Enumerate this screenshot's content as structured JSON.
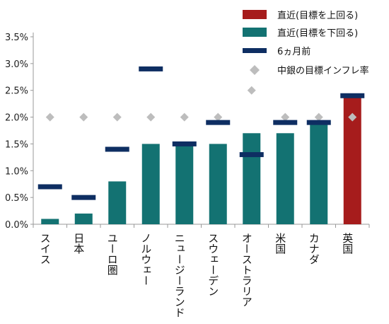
{
  "colors": {
    "above": "#A61C1C",
    "below": "#137272",
    "six_months_ago": "#0E2E62",
    "target": "#BDBDBD",
    "axis": "#999999"
  },
  "legend": [
    {
      "label": "直近(目標を上回る)",
      "marker": "bar-above"
    },
    {
      "label": "直近(目標を下回る)",
      "marker": "bar-below"
    },
    {
      "label": "6ヵ月前",
      "marker": "dash"
    },
    {
      "label": "中銀の目標インフレ率",
      "marker": "diamond"
    }
  ],
  "chart_data": {
    "type": "bar",
    "categories": [
      "スイス",
      "日本",
      "ユーロ圏",
      "ノルウェー",
      "ニュージーランド",
      "スウェーデン",
      "オーストラリア",
      "米国",
      "カナダ",
      "英国"
    ],
    "series": [
      {
        "name": "直近(目標を下回る)",
        "values": [
          0.1,
          0.2,
          0.8,
          1.5,
          1.5,
          1.5,
          1.7,
          1.7,
          1.9,
          null
        ]
      },
      {
        "name": "直近(目標を上回る)",
        "values": [
          null,
          null,
          null,
          null,
          null,
          null,
          null,
          null,
          null,
          2.4
        ]
      },
      {
        "name": "6ヵ月前",
        "values": [
          0.7,
          0.5,
          1.4,
          2.9,
          1.5,
          1.9,
          1.3,
          1.9,
          1.9,
          2.4
        ]
      },
      {
        "name": "中銀の目標インフレ率",
        "values": [
          2.0,
          2.0,
          2.0,
          2.0,
          2.0,
          2.0,
          2.5,
          2.0,
          2.0,
          2.0
        ]
      }
    ],
    "yticks": [
      "0.0%",
      "0.5%",
      "1.0%",
      "1.5%",
      "2.0%",
      "2.5%",
      "3.0%",
      "3.5%"
    ],
    "ylim": [
      0,
      3.5
    ],
    "grid": false,
    "legend_position": "top-right"
  }
}
